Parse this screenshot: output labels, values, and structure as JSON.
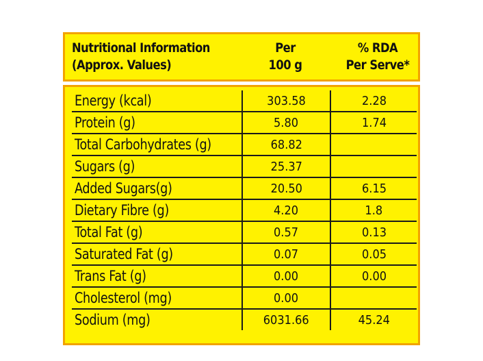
{
  "header": {
    "nutrition_line1": "Nutritional Information",
    "nutrition_line2": "(Approx. Values)",
    "per_line1": "Per",
    "per_line2": "100 g",
    "rda_line1": "% RDA",
    "rda_line2": "Per Serve*"
  },
  "rows": [
    {
      "label": "Energy (kcal)",
      "per100g": "303.58",
      "rda": "2.28"
    },
    {
      "label": "Protein (g)",
      "per100g": "5.80",
      "rda": "1.74"
    },
    {
      "label": "Total Carbohydrates (g)",
      "per100g": "68.82",
      "rda": ""
    },
    {
      "label": "Sugars (g)",
      "per100g": "25.37",
      "rda": ""
    },
    {
      "label": "Added Sugars(g)",
      "per100g": "20.50",
      "rda": "6.15"
    },
    {
      "label": "Dietary Fibre (g)",
      "per100g": "4.20",
      "rda": "1.8"
    },
    {
      "label": "Total Fat (g)",
      "per100g": "0.57",
      "rda": "0.13"
    },
    {
      "label": "Saturated Fat (g)",
      "per100g": "0.07",
      "rda": "0.05"
    },
    {
      "label": "Trans Fat (g)",
      "per100g": "0.00",
      "rda": "0.00"
    },
    {
      "label": "Cholesterol (mg)",
      "per100g": "0.00",
      "rda": ""
    },
    {
      "label": "Sodium (mg)",
      "per100g": "6031.66",
      "rda": "45.24"
    }
  ],
  "colors": {
    "panel_fill": "#fff200",
    "panel_border": "#f2a300",
    "grid_line": "#1a1a1a",
    "text": "#111111"
  }
}
